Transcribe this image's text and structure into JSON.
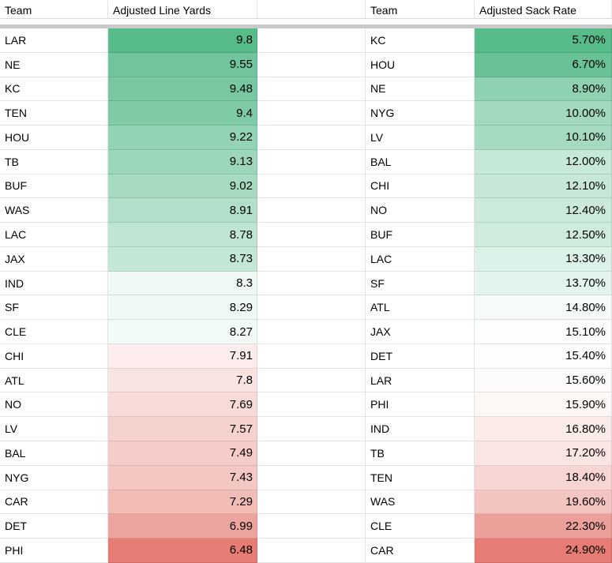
{
  "app": {
    "kind": "spreadsheet-grid"
  },
  "theme": {
    "gridline_color": "rgba(0,0,0,0.11)",
    "header_underline_color": "#d9d9d9",
    "frozen_divider_color": "#c9c9c9",
    "background_color": "#ffffff",
    "text_color": "#000000",
    "scale_green": "#57BB8A",
    "scale_white": "#FFFFFF",
    "scale_red": "#E67C73"
  },
  "tables": [
    {
      "id": "adjusted-line-yards",
      "team_header": "Team",
      "value_header": "Adjusted Line Yards",
      "color_scale": {
        "min": 6.48,
        "max": 9.8,
        "min_color": "#E67C73",
        "mid_color": "#FFFFFF",
        "max_color": "#57BB8A"
      },
      "rows": [
        {
          "team": "LAR",
          "value": "9.8"
        },
        {
          "team": "NE",
          "value": "9.55"
        },
        {
          "team": "KC",
          "value": "9.48"
        },
        {
          "team": "TEN",
          "value": "9.4"
        },
        {
          "team": "HOU",
          "value": "9.22"
        },
        {
          "team": "TB",
          "value": "9.13"
        },
        {
          "team": "BUF",
          "value": "9.02"
        },
        {
          "team": "WAS",
          "value": "8.91"
        },
        {
          "team": "LAC",
          "value": "8.78"
        },
        {
          "team": "JAX",
          "value": "8.73"
        },
        {
          "team": "IND",
          "value": "8.3"
        },
        {
          "team": "SF",
          "value": "8.29"
        },
        {
          "team": "CLE",
          "value": "8.27"
        },
        {
          "team": "CHI",
          "value": "7.91"
        },
        {
          "team": "ATL",
          "value": "7.8"
        },
        {
          "team": "NO",
          "value": "7.69"
        },
        {
          "team": "LV",
          "value": "7.57"
        },
        {
          "team": "BAL",
          "value": "7.49"
        },
        {
          "team": "NYG",
          "value": "7.43"
        },
        {
          "team": "CAR",
          "value": "7.29"
        },
        {
          "team": "DET",
          "value": "6.99"
        },
        {
          "team": "PHI",
          "value": "6.48"
        }
      ]
    },
    {
      "id": "adjusted-sack-rate",
      "team_header": "Team",
      "value_header": "Adjusted Sack Rate",
      "color_scale": {
        "min": 5.7,
        "max": 24.9,
        "min_color": "#57BB8A",
        "mid_color": "#FFFFFF",
        "max_color": "#E67C73"
      },
      "rows": [
        {
          "team": "KC",
          "value": "5.70%"
        },
        {
          "team": "HOU",
          "value": "6.70%"
        },
        {
          "team": "NE",
          "value": "8.90%"
        },
        {
          "team": "NYG",
          "value": "10.00%"
        },
        {
          "team": "LV",
          "value": "10.10%"
        },
        {
          "team": "BAL",
          "value": "12.00%"
        },
        {
          "team": "CHI",
          "value": "12.10%"
        },
        {
          "team": "NO",
          "value": "12.40%"
        },
        {
          "team": "BUF",
          "value": "12.50%"
        },
        {
          "team": "LAC",
          "value": "13.30%"
        },
        {
          "team": "SF",
          "value": "13.70%"
        },
        {
          "team": "ATL",
          "value": "14.80%"
        },
        {
          "team": "JAX",
          "value": "15.10%"
        },
        {
          "team": "DET",
          "value": "15.40%"
        },
        {
          "team": "LAR",
          "value": "15.60%"
        },
        {
          "team": "PHI",
          "value": "15.90%"
        },
        {
          "team": "IND",
          "value": "16.80%"
        },
        {
          "team": "TB",
          "value": "17.20%"
        },
        {
          "team": "TEN",
          "value": "18.40%"
        },
        {
          "team": "WAS",
          "value": "19.60%"
        },
        {
          "team": "CLE",
          "value": "22.30%"
        },
        {
          "team": "CAR",
          "value": "24.90%"
        }
      ]
    }
  ]
}
